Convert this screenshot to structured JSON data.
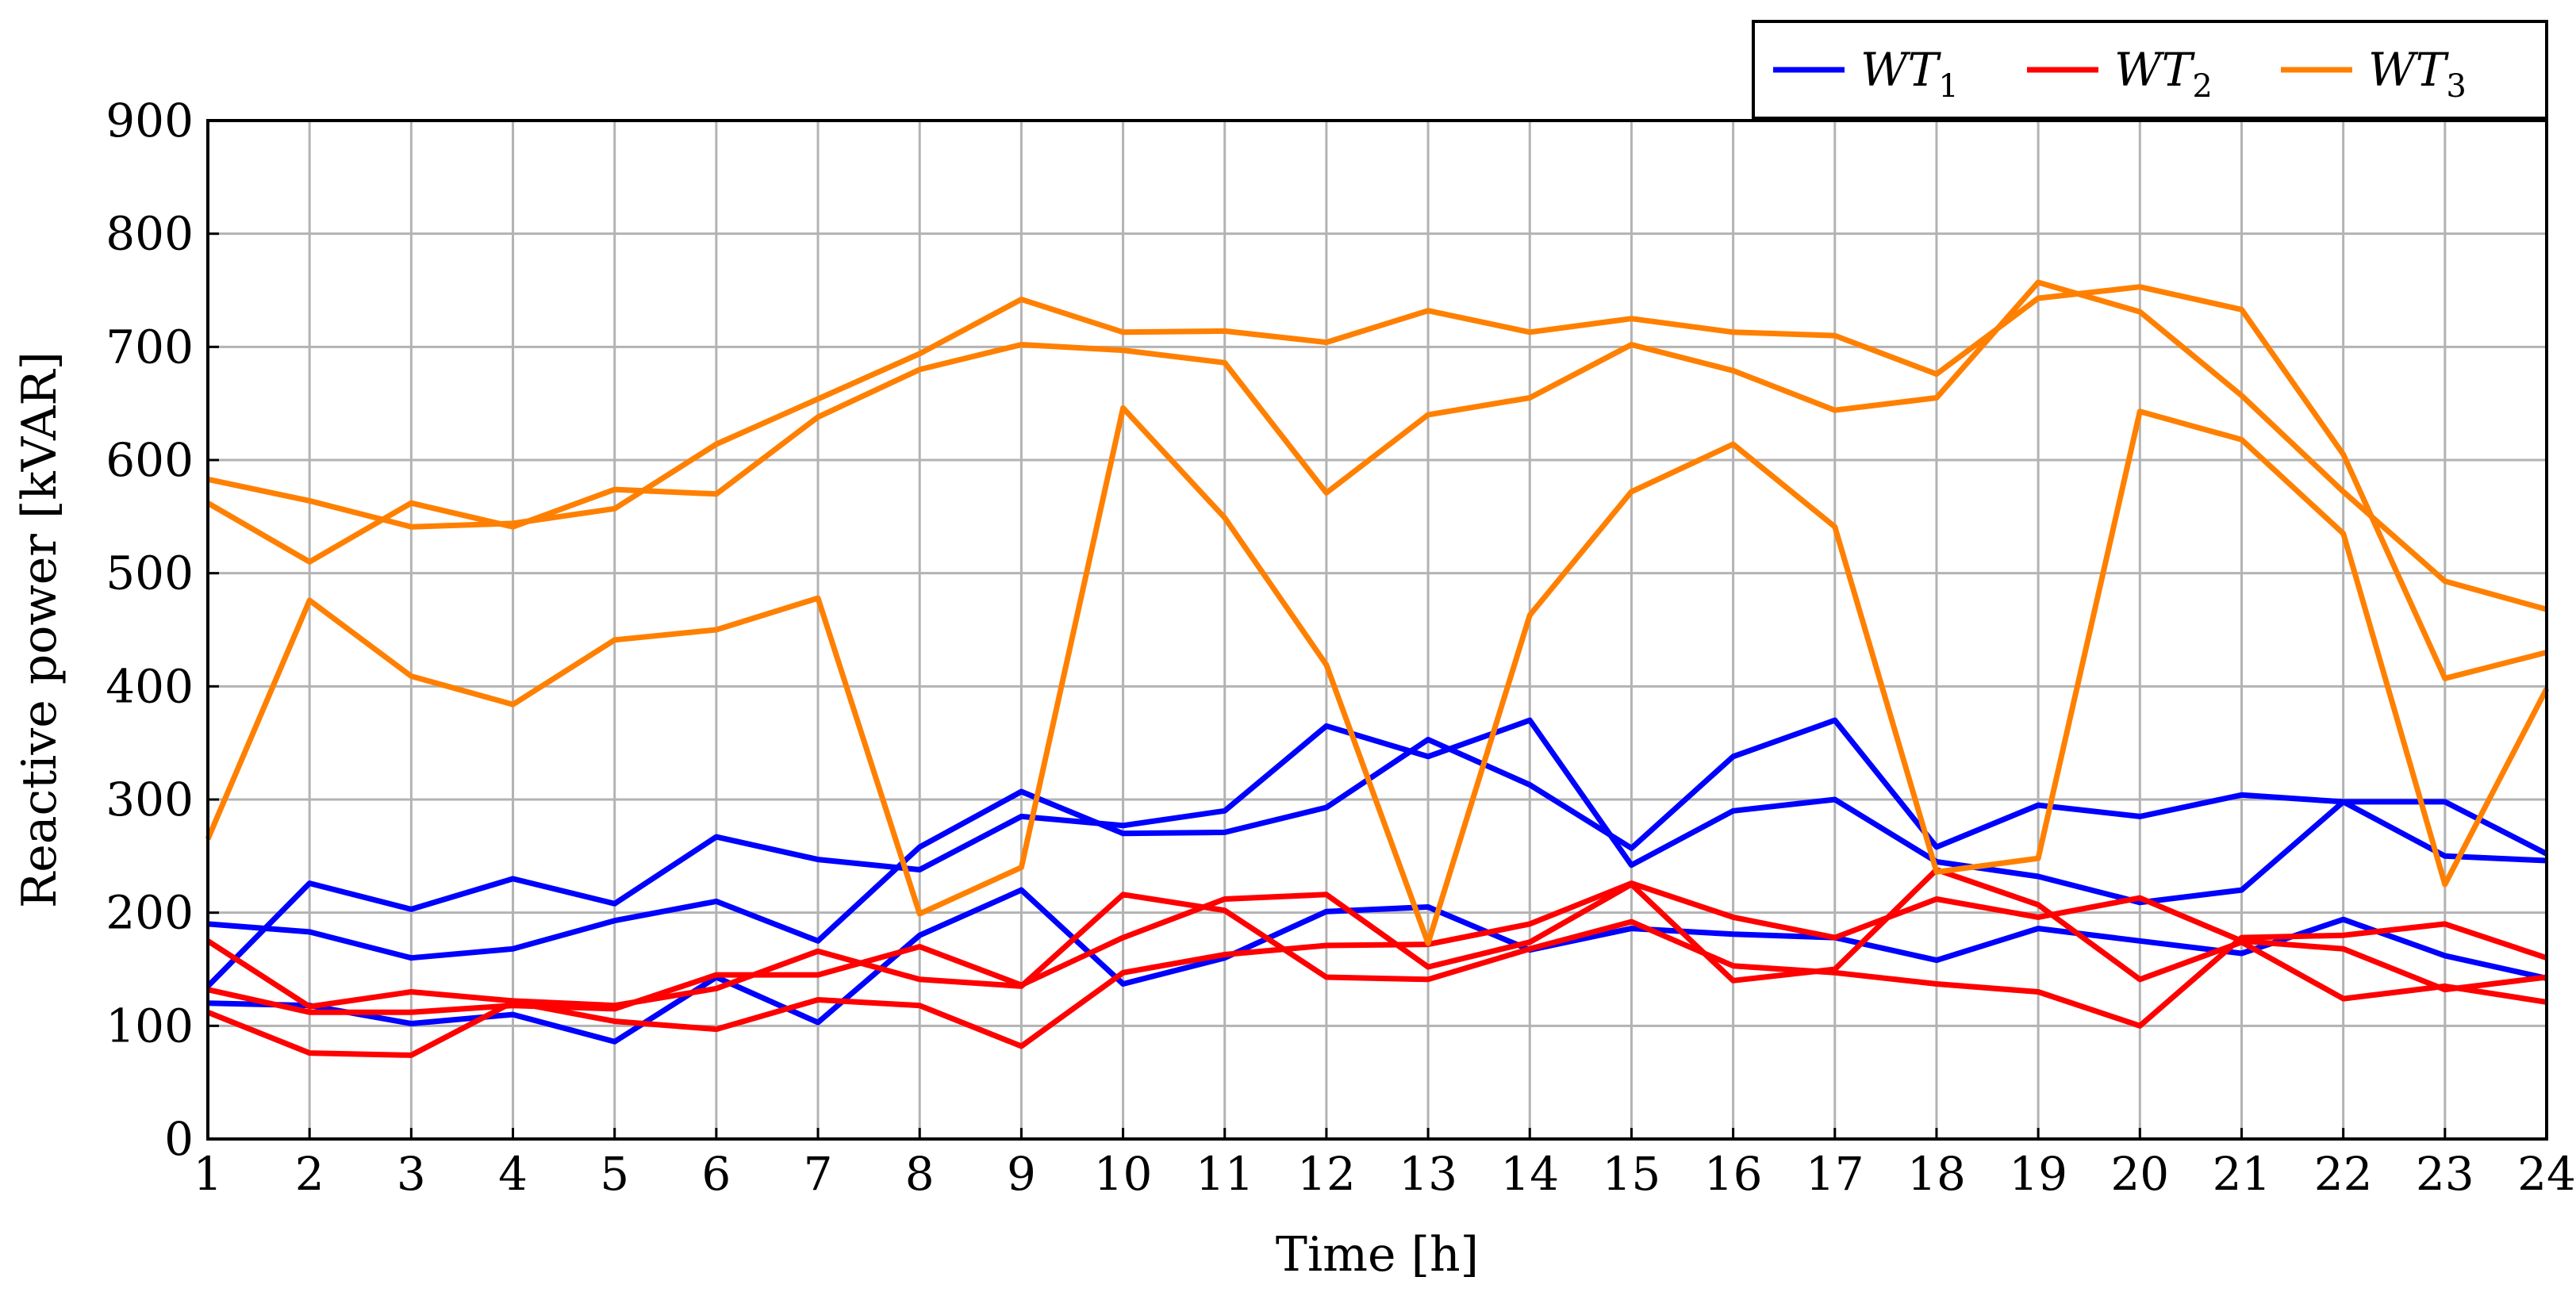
{
  "chart_data": {
    "type": "line",
    "xlabel": "Time [h]",
    "ylabel": "Reactive power [kVAR]",
    "x": [
      1,
      2,
      3,
      4,
      5,
      6,
      7,
      8,
      9,
      10,
      11,
      12,
      13,
      14,
      15,
      16,
      17,
      18,
      19,
      20,
      21,
      22,
      23,
      24
    ],
    "xlim": [
      1,
      24
    ],
    "ylim": [
      0,
      900
    ],
    "yticks": [
      0,
      100,
      200,
      300,
      400,
      500,
      600,
      700,
      800,
      900
    ],
    "grid": true,
    "legend_position": "top-right",
    "legend": [
      {
        "base": "WT",
        "sub": "1",
        "color": "#0000ff"
      },
      {
        "base": "WT",
        "sub": "2",
        "color": "#ff0000"
      },
      {
        "base": "WT",
        "sub": "3",
        "color": "#ff8000"
      }
    ],
    "series": [
      {
        "group": "WT1",
        "color": "#0000ff",
        "values": [
          190,
          183,
          160,
          168,
          193,
          210,
          175,
          258,
          307,
          270,
          271,
          293,
          353,
          313,
          257,
          338,
          370,
          258,
          295,
          285,
          304,
          298,
          250,
          246
        ]
      },
      {
        "group": "WT1",
        "color": "#0000ff",
        "values": [
          135,
          226,
          203,
          230,
          208,
          267,
          247,
          238,
          285,
          277,
          290,
          365,
          338,
          370,
          242,
          290,
          300,
          245,
          232,
          209,
          220,
          298,
          298,
          252
        ]
      },
      {
        "group": "WT1",
        "color": "#0000ff",
        "values": [
          120,
          118,
          102,
          110,
          86,
          143,
          103,
          180,
          220,
          137,
          160,
          201,
          205,
          167,
          186,
          181,
          178,
          158,
          186,
          175,
          164,
          194,
          162,
          142
        ]
      },
      {
        "group": "WT2",
        "color": "#ff0000",
        "values": [
          175,
          117,
          130,
          122,
          118,
          133,
          166,
          141,
          135,
          216,
          202,
          143,
          141,
          168,
          192,
          153,
          147,
          137,
          130,
          100,
          178,
          180,
          190,
          160
        ]
      },
      {
        "group": "WT2",
        "color": "#ff0000",
        "values": [
          112,
          76,
          74,
          121,
          104,
          97,
          123,
          118,
          82,
          147,
          163,
          171,
          172,
          190,
          226,
          196,
          178,
          212,
          196,
          213,
          175,
          168,
          132,
          143
        ]
      },
      {
        "group": "WT2",
        "color": "#ff0000",
        "values": [
          132,
          112,
          112,
          118,
          115,
          145,
          145,
          170,
          136,
          178,
          212,
          216,
          152,
          174,
          225,
          140,
          150,
          238,
          207,
          141,
          174,
          124,
          135,
          121
        ]
      },
      {
        "group": "WT3",
        "color": "#ff8000",
        "values": [
          583,
          564,
          541,
          544,
          557,
          614,
          654,
          694,
          742,
          713,
          714,
          704,
          732,
          713,
          725,
          713,
          710,
          676,
          743,
          753,
          733,
          605,
          407,
          430
        ]
      },
      {
        "group": "WT3",
        "color": "#ff8000",
        "values": [
          562,
          510,
          562,
          541,
          574,
          570,
          638,
          680,
          702,
          697,
          686,
          571,
          640,
          655,
          702,
          679,
          644,
          655,
          757,
          731,
          657,
          572,
          493,
          468
        ]
      },
      {
        "group": "WT3",
        "color": "#ff8000",
        "values": [
          265,
          476,
          409,
          384,
          441,
          450,
          478,
          199,
          240,
          646,
          549,
          419,
          173,
          463,
          572,
          614,
          541,
          236,
          248,
          643,
          618,
          535,
          225,
          398
        ]
      }
    ]
  }
}
